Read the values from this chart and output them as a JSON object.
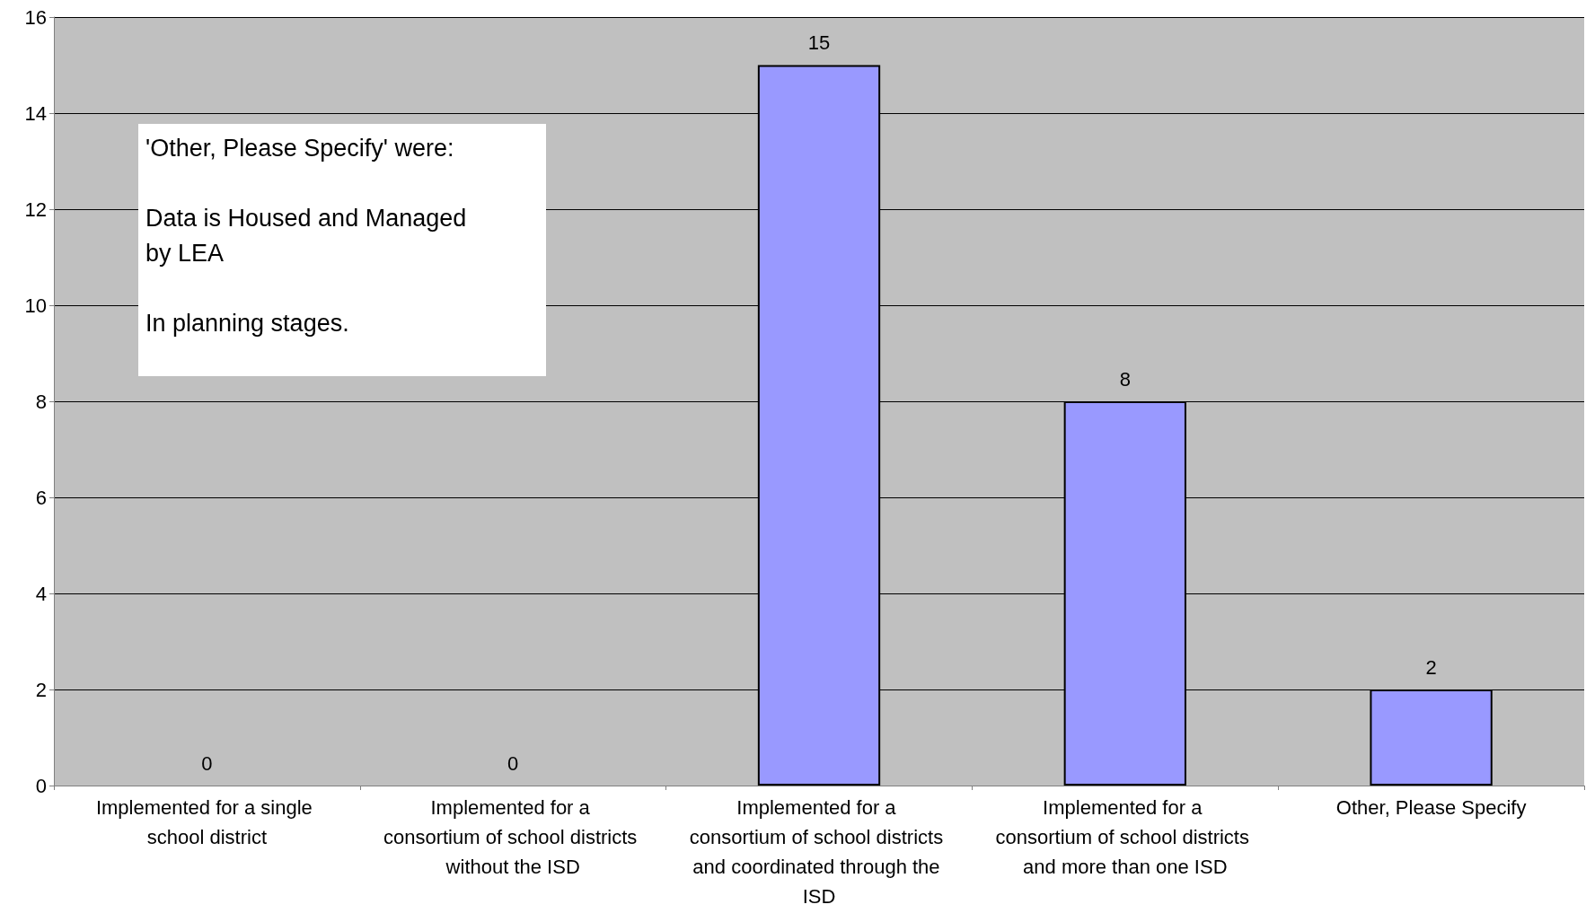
{
  "chart_data": {
    "type": "bar",
    "categories": [
      "Implemented for a single school district",
      "Implemented for a consortium of school districts without the ISD",
      "Implemented for a consortium of school districts and coordinated through the ISD",
      "Implemented for a consortium of school districts and more than one ISD",
      "Other, Please Specify"
    ],
    "values": [
      0,
      0,
      15,
      8,
      2
    ],
    "color": "#9999ff",
    "ylim": [
      0,
      16
    ],
    "yticks": [
      0,
      2,
      4,
      6,
      8,
      10,
      12,
      14,
      16
    ],
    "grid": "y",
    "data_labels": true,
    "annotations": [
      "'Other, Please Specify' were:\n\nData is Housed and Managed\nby LEA\n\nIn planning stages."
    ]
  }
}
